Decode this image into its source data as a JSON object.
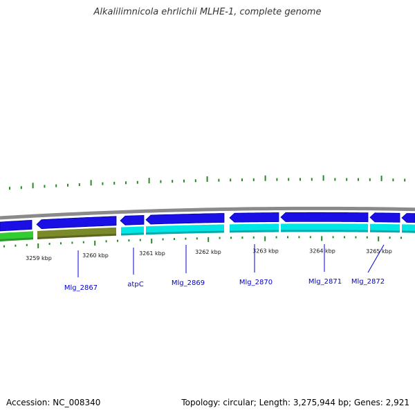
{
  "title": "Alkalilimnicola ehrlichii MLHE-1, complete genome",
  "footer": {
    "accession": "Accession: NC_008340",
    "summary": "Topology: circular; Length: 3,275,944 bp; Genes: 2,921"
  },
  "coordinate_labels": [
    "3259 kbp",
    "3260 kbp",
    "3261 kbp",
    "3262 kbp",
    "3263 kbp",
    "3264 kbp",
    "3265 kbp"
  ],
  "gene_labels": [
    "Mlg_2867",
    "atpC",
    "Mlg_2869",
    "Mlg_2870",
    "Mlg_2871",
    "Mlg_2872"
  ],
  "colors": {
    "backbone": "#8a8a8a",
    "cds": "#1a10e6",
    "cds_dark": "#0000aa",
    "gene_track": "#00e5e5",
    "gene_track_alt": "#7a8a2a",
    "gene_track_green": "#33cc33",
    "tick": "#228b22",
    "label": "#0000cc"
  }
}
